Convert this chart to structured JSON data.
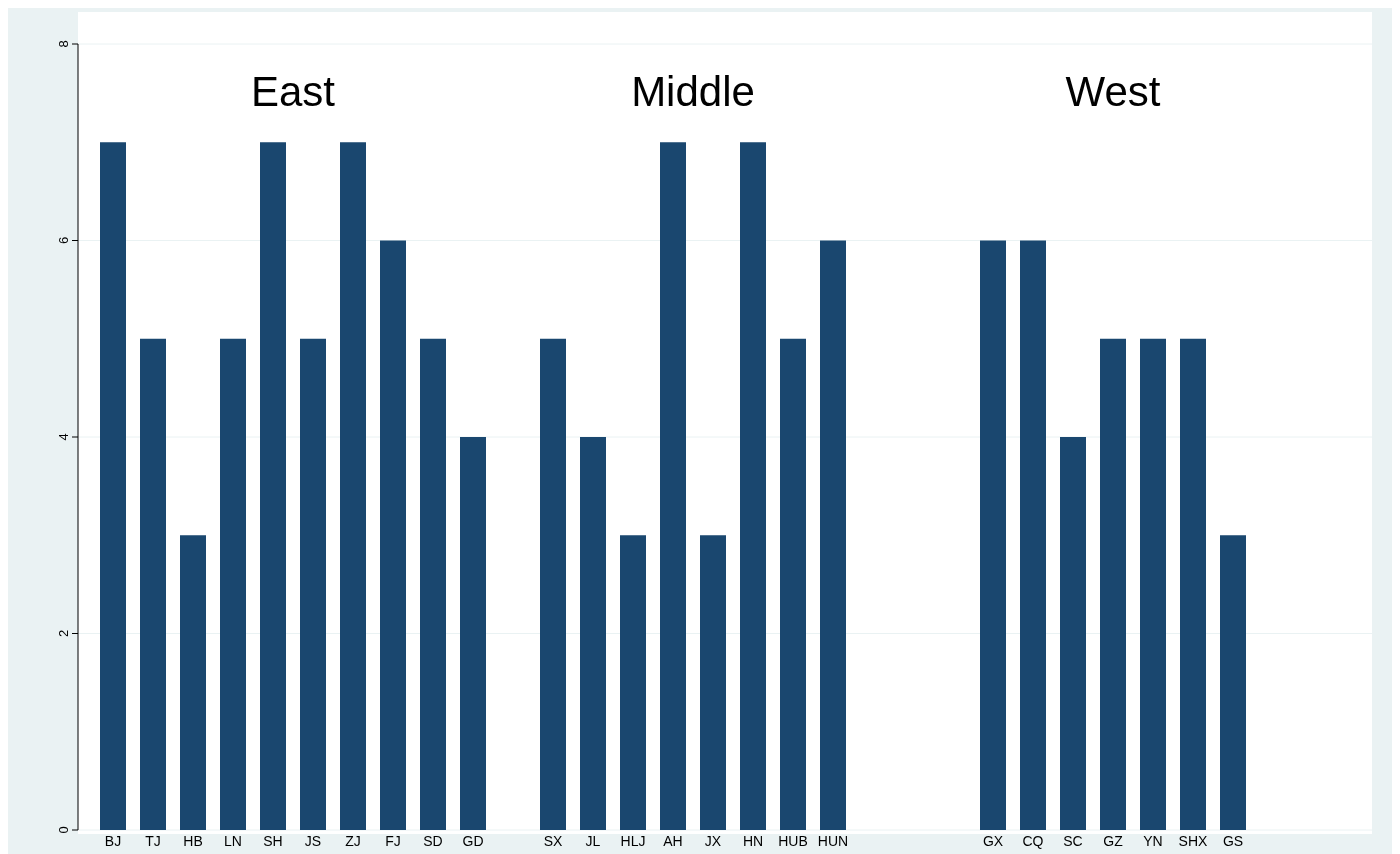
{
  "chart_data": {
    "type": "bar",
    "categories": [
      "BJ",
      "TJ",
      "HB",
      "LN",
      "SH",
      "JS",
      "ZJ",
      "FJ",
      "SD",
      "GD",
      null,
      "SX",
      "JL",
      "HLJ",
      "AH",
      "JX",
      "HN",
      "HUB",
      "HUN",
      null,
      null,
      null,
      "GX",
      "CQ",
      "SC",
      "GZ",
      "YN",
      "SHX",
      "GS"
    ],
    "values": [
      7,
      5,
      3,
      5,
      7,
      5,
      7,
      6,
      5,
      4,
      null,
      5,
      4,
      3,
      7,
      3,
      7,
      5,
      6,
      null,
      null,
      null,
      6,
      6,
      4,
      5,
      5,
      5,
      3
    ],
    "color": "#1a476f",
    "ylim": [
      0,
      8
    ],
    "yticks": [
      0,
      2,
      4,
      6,
      8
    ],
    "grid": "y",
    "annotations": [
      "East",
      "Middle",
      "West"
    ]
  }
}
